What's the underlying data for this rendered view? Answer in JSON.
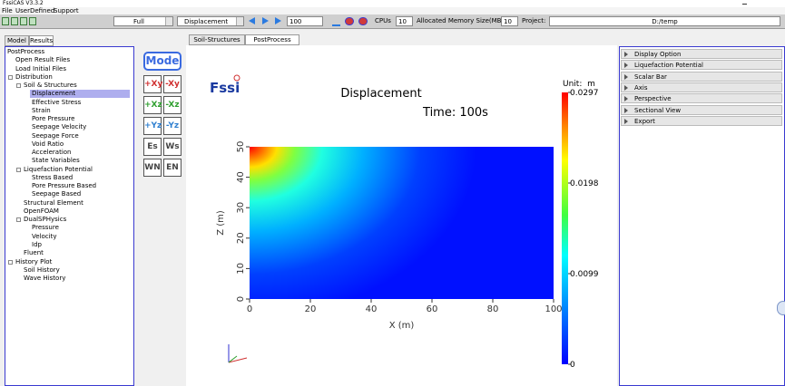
{
  "window": {
    "title": "FssiCAS V3.3.2"
  },
  "menu": [
    "File",
    "UserDefined",
    "Support"
  ],
  "toolbar": {
    "view": "Full",
    "variable": "Displacement",
    "step": "100",
    "cpus_label": "CPUs",
    "cpus": "10",
    "memory_label": "Allocated Memory Size(MB) :",
    "memory": "10",
    "project_label": "Project:",
    "project": "D:/temp"
  },
  "left_tabs": [
    "Model",
    "Results"
  ],
  "tree": {
    "label": "PostProcess",
    "children": [
      {
        "label": "Open Result Files"
      },
      {
        "label": "Load Initial Files"
      },
      {
        "label": "Distribution",
        "children": [
          {
            "label": "Soil & Structures",
            "children": [
              {
                "label": "Displacement",
                "selected": true
              },
              {
                "label": "Effective Stress"
              },
              {
                "label": "Strain"
              },
              {
                "label": "Pore Pressure"
              },
              {
                "label": "Seepage Velocity"
              },
              {
                "label": "Seepage Force"
              },
              {
                "label": "Void Ratio"
              },
              {
                "label": "Acceleration"
              },
              {
                "label": "State Variables"
              }
            ]
          },
          {
            "label": "Liquefaction Potential",
            "children": [
              {
                "label": "Stress Based"
              },
              {
                "label": "Pore Pressure Based"
              },
              {
                "label": "Seepage Based"
              }
            ]
          },
          {
            "label": "Structural Element"
          },
          {
            "label": "OpenFOAM"
          },
          {
            "label": "DualSPHysics",
            "children": [
              {
                "label": "Pressure"
              },
              {
                "label": "Velocity"
              },
              {
                "label": "Idp"
              }
            ]
          },
          {
            "label": "Fluent"
          }
        ]
      },
      {
        "label": "History Plot",
        "children": [
          {
            "label": "Soil History"
          },
          {
            "label": "Wave History"
          }
        ]
      }
    ]
  },
  "view_buttons": [
    "Mode",
    "+Xy",
    "-Xy",
    "+Xz",
    "-Xz",
    "+Yz",
    "-Yz",
    "Es",
    "Ws",
    "WN",
    "EN"
  ],
  "center_tabs": [
    "Soil-Structures",
    "PostProcess"
  ],
  "plot": {
    "logo": "Fssi",
    "title": "Displacement",
    "time": "Time: 100s",
    "xlabel": "X (m)",
    "ylabel": "Z (m)",
    "xlim": [
      0,
      100
    ],
    "xticks": [
      0,
      20,
      40,
      60,
      80,
      100
    ],
    "ylim": [
      0,
      50
    ],
    "yticks": [
      0,
      10,
      20,
      30,
      40,
      50
    ],
    "colorbar": {
      "unit": "Unit:  m",
      "lim": [
        0,
        0.0297
      ],
      "ticks": [
        0.0297,
        0.0198,
        0.0099,
        0
      ]
    }
  },
  "right_panel": [
    "Display Option",
    "Liquefaction Potential",
    "Scalar Bar",
    "Axis",
    "Perspective",
    "Sectional View",
    "Export"
  ]
}
